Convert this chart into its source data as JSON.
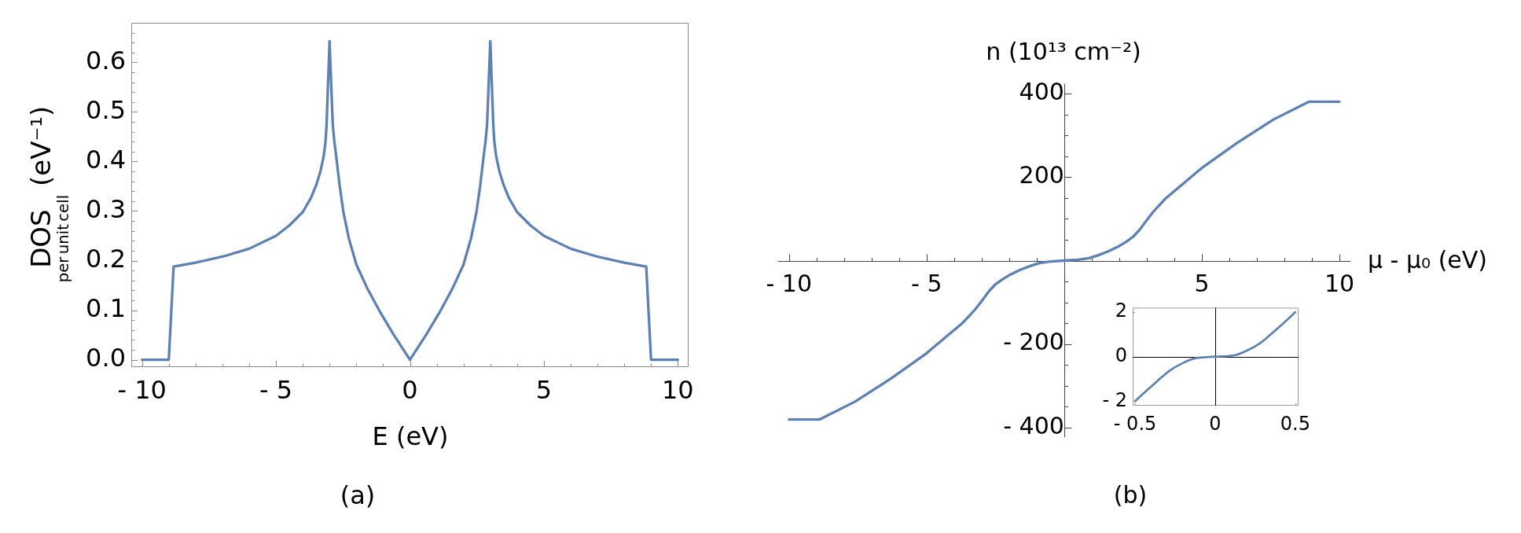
{
  "chart_data": [
    {
      "type": "line",
      "xlabel": "E (eV)",
      "ylabel": "DOS$_{per unit cell}$ (eV⁻¹)",
      "annotations": [
        "(a)"
      ],
      "color": "#5e81b5",
      "x": [
        -10,
        -9,
        -8.82,
        -8,
        -7,
        -6,
        -5,
        -4.5,
        -4,
        -3.7,
        -3.5,
        -3.35,
        -3.22,
        -3.15,
        -3.11,
        -3,
        -2.88,
        -2.82,
        -2.75,
        -2.62,
        -2.48,
        -2.28,
        -2,
        -1.6,
        -1.1,
        -0.6,
        0,
        0.6,
        1.1,
        1.6,
        2,
        2.28,
        2.48,
        2.62,
        2.75,
        2.82,
        2.88,
        3,
        3.11,
        3.15,
        3.22,
        3.35,
        3.5,
        3.7,
        4,
        4.5,
        5,
        6,
        7,
        8,
        8.82,
        9,
        10
      ],
      "values": [
        0,
        0,
        0.188,
        0.196,
        0.208,
        0.224,
        0.25,
        0.271,
        0.298,
        0.326,
        0.352,
        0.378,
        0.41,
        0.44,
        0.475,
        0.643,
        0.475,
        0.44,
        0.41,
        0.35,
        0.297,
        0.245,
        0.192,
        0.145,
        0.095,
        0.05,
        0,
        0.05,
        0.095,
        0.145,
        0.192,
        0.245,
        0.297,
        0.35,
        0.41,
        0.44,
        0.475,
        0.643,
        0.475,
        0.44,
        0.41,
        0.378,
        0.352,
        0.326,
        0.298,
        0.271,
        0.25,
        0.224,
        0.208,
        0.196,
        0.188,
        0,
        0
      ],
      "xlim": [
        -10.4,
        10.4
      ],
      "xticks": [
        {
          "value": -10,
          "label": "- 10"
        },
        {
          "value": -9,
          "label": null
        },
        {
          "value": -8,
          "label": null
        },
        {
          "value": -7,
          "label": null
        },
        {
          "value": -6,
          "label": null
        },
        {
          "value": -5,
          "label": "- 5"
        },
        {
          "value": -4,
          "label": null
        },
        {
          "value": -3,
          "label": null
        },
        {
          "value": -2,
          "label": null
        },
        {
          "value": -1,
          "label": null
        },
        0,
        {
          "value": 1,
          "label": null
        },
        {
          "value": 2,
          "label": null
        },
        {
          "value": 3,
          "label": null
        },
        {
          "value": 4,
          "label": null
        },
        5,
        {
          "value": 6,
          "label": null
        },
        {
          "value": 7,
          "label": null
        },
        {
          "value": 8,
          "label": null
        },
        {
          "value": 9,
          "label": null
        },
        10
      ],
      "ylim": [
        -0.015,
        0.68
      ],
      "yticks": [
        {
          "value": 0,
          "label": "0.0"
        },
        {
          "value": 0.02,
          "label": null
        },
        {
          "value": 0.04,
          "label": null
        },
        {
          "value": 0.06,
          "label": null
        },
        {
          "value": 0.08,
          "label": null
        },
        0.1,
        {
          "value": 0.12,
          "label": null
        },
        {
          "value": 0.14,
          "label": null
        },
        {
          "value": 0.16,
          "label": null
        },
        {
          "value": 0.18,
          "label": null
        },
        0.2,
        {
          "value": 0.22,
          "label": null
        },
        {
          "value": 0.24,
          "label": null
        },
        {
          "value": 0.26,
          "label": null
        },
        {
          "value": 0.28,
          "label": null
        },
        0.3,
        {
          "value": 0.32,
          "label": null
        },
        {
          "value": 0.34,
          "label": null
        },
        {
          "value": 0.36,
          "label": null
        },
        {
          "value": 0.38,
          "label": null
        },
        0.4,
        {
          "value": 0.42,
          "label": null
        },
        {
          "value": 0.44,
          "label": null
        },
        {
          "value": 0.46,
          "label": null
        },
        {
          "value": 0.48,
          "label": null
        },
        0.5,
        {
          "value": 0.52,
          "label": null
        },
        {
          "value": 0.54,
          "label": null
        },
        {
          "value": 0.56,
          "label": null
        },
        {
          "value": 0.58,
          "label": null
        },
        0.6,
        {
          "value": 0.62,
          "label": null
        },
        {
          "value": 0.64,
          "label": null
        },
        {
          "value": 0.66,
          "label": null
        }
      ]
    },
    {
      "type": "line",
      "xlabel": "μ - μ₀ (eV)",
      "ylabel": "n (10¹³ cm⁻²)",
      "annotations": [
        "(b)"
      ],
      "color": "#5e81b5",
      "x": [
        -10,
        -8.9,
        -7.6,
        -6.3,
        -5,
        -3.7,
        -3.4,
        -3.2,
        -3,
        -2.73,
        -2.5,
        -2.27,
        -2,
        -1.6,
        -1.2,
        -0.9,
        -0.5,
        0,
        0.5,
        0.9,
        1.2,
        1.6,
        2,
        2.27,
        2.5,
        2.73,
        3,
        3.2,
        3.4,
        3.7,
        5,
        6.3,
        7.6,
        8.9,
        10
      ],
      "values": [
        -381,
        -381,
        -338,
        -283,
        -222,
        -150,
        -129,
        -114,
        -97,
        -73,
        -57,
        -46,
        -35,
        -22,
        -12,
        -6,
        -2,
        0,
        2,
        6,
        12,
        22,
        35,
        46,
        57,
        73,
        97,
        114,
        129,
        150,
        222,
        283,
        338,
        381,
        381
      ],
      "xlim": [
        -10.4,
        10.4
      ],
      "xticks": [
        {
          "value": -10,
          "label": "- 10"
        },
        {
          "value": -9,
          "label": null
        },
        {
          "value": -8,
          "label": null
        },
        {
          "value": -7,
          "label": null
        },
        {
          "value": -6,
          "label": null
        },
        {
          "value": -5,
          "label": "- 5"
        },
        {
          "value": -4,
          "label": null
        },
        {
          "value": -3,
          "label": null
        },
        {
          "value": -2,
          "label": null
        },
        {
          "value": -1,
          "label": null
        },
        {
          "value": 1,
          "label": null
        },
        {
          "value": 2,
          "label": null
        },
        {
          "value": 3,
          "label": null
        },
        {
          "value": 4,
          "label": null
        },
        5,
        {
          "value": 6,
          "label": null
        },
        {
          "value": 7,
          "label": null
        },
        {
          "value": 8,
          "label": null
        },
        {
          "value": 9,
          "label": null
        },
        10
      ],
      "ylim": [
        -423,
        423
      ],
      "yticks": [
        {
          "value": -400,
          "label": "- 400"
        },
        {
          "value": -350,
          "label": null
        },
        {
          "value": -300,
          "label": null
        },
        {
          "value": -250,
          "label": null
        },
        {
          "value": -200,
          "label": "- 200"
        },
        {
          "value": -150,
          "label": null
        },
        {
          "value": -100,
          "label": null
        },
        {
          "value": -50,
          "label": null
        },
        {
          "value": 50,
          "label": null
        },
        {
          "value": 100,
          "label": null
        },
        {
          "value": 150,
          "label": null
        },
        200,
        {
          "value": 250,
          "label": null
        },
        {
          "value": 300,
          "label": null
        },
        {
          "value": 350,
          "label": null
        },
        400
      ]
    },
    {
      "type": "line",
      "color": "#5e81b5",
      "x": [
        -0.5,
        -0.44,
        -0.365,
        -0.285,
        -0.2,
        -0.125,
        0,
        0.125,
        0.2,
        0.285,
        0.365,
        0.44,
        0.5
      ],
      "values": [
        -2,
        -1.6,
        -1.12,
        -0.63,
        -0.28,
        -0.07,
        0,
        0.07,
        0.28,
        0.63,
        1.12,
        1.6,
        2
      ],
      "xlim": [
        -0.515,
        0.52
      ],
      "xticks": [
        {
          "value": -0.5,
          "label": "- 0.5"
        },
        0,
        0.5
      ],
      "ylim": [
        -2.2,
        2.2
      ],
      "yticks": [
        {
          "value": -2,
          "label": "- 2"
        },
        0,
        2
      ]
    }
  ]
}
